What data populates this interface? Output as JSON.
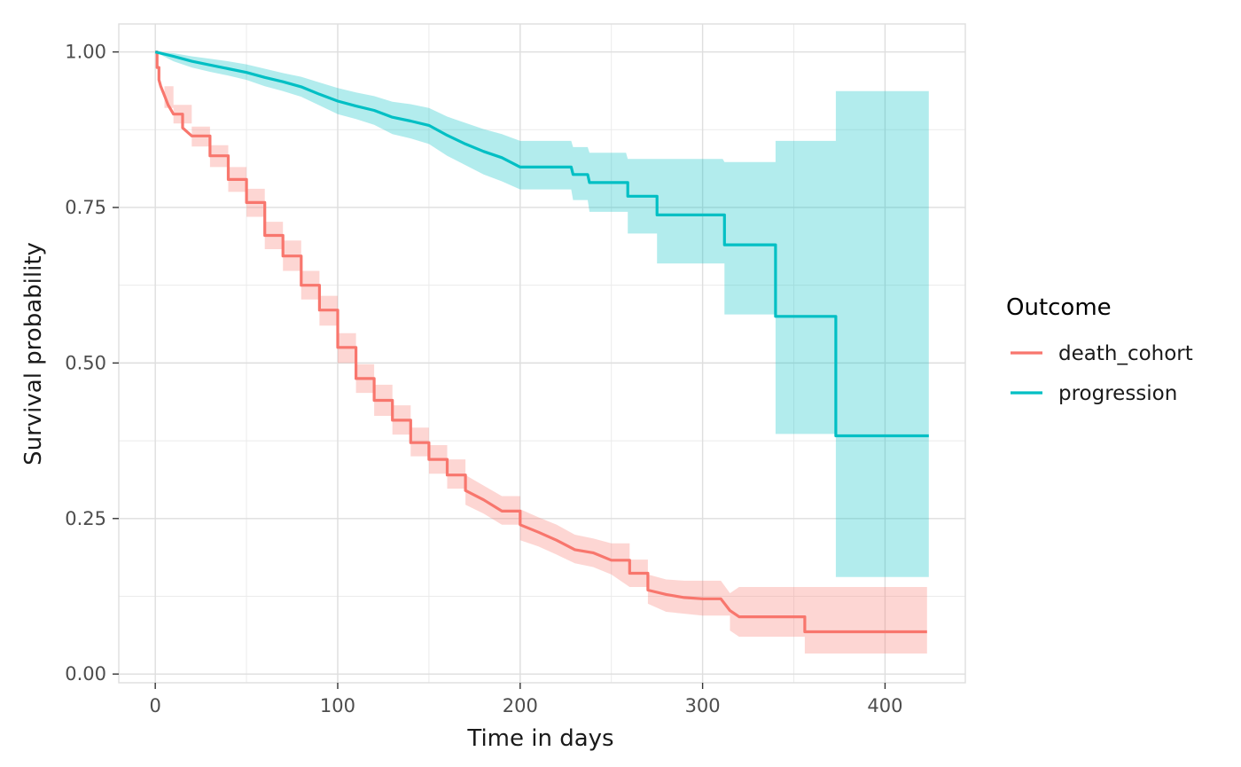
{
  "chart_data": {
    "type": "line",
    "subtype": "kaplan-meier step curves with confidence bands",
    "title": "",
    "xlabel": "Time in days",
    "ylabel": "Survival probability",
    "xlim": [
      -20,
      444
    ],
    "ylim": [
      -0.014,
      1.045
    ],
    "x_ticks": [
      0,
      100,
      200,
      300,
      400
    ],
    "x_tick_labels": [
      "0",
      "100",
      "200",
      "300",
      "400"
    ],
    "y_ticks": [
      0,
      0.25,
      0.5,
      0.75,
      1
    ],
    "y_tick_labels": [
      "0.00",
      "0.25",
      "0.50",
      "0.75",
      "1.00"
    ],
    "grid": true,
    "legend": {
      "title": "Outcome",
      "position": "right"
    },
    "series": [
      {
        "name": "death_cohort",
        "color": "#F8766D",
        "fill_color": "#FCC4C0",
        "points": [
          [
            0,
            1.0
          ],
          [
            1,
            0.975
          ],
          [
            2,
            0.955
          ],
          [
            3,
            0.945
          ],
          [
            5,
            0.93
          ],
          [
            7,
            0.915
          ],
          [
            10,
            0.9
          ],
          [
            15,
            0.878
          ],
          [
            20,
            0.865
          ],
          [
            30,
            0.833
          ],
          [
            40,
            0.795
          ],
          [
            50,
            0.758
          ],
          [
            60,
            0.705
          ],
          [
            70,
            0.672
          ],
          [
            80,
            0.625
          ],
          [
            90,
            0.585
          ],
          [
            100,
            0.525
          ],
          [
            110,
            0.475
          ],
          [
            120,
            0.44
          ],
          [
            130,
            0.408
          ],
          [
            140,
            0.372
          ],
          [
            150,
            0.345
          ],
          [
            160,
            0.32
          ],
          [
            170,
            0.295
          ],
          [
            180,
            0.28
          ],
          [
            190,
            0.262
          ],
          [
            200,
            0.24
          ],
          [
            210,
            0.228
          ],
          [
            220,
            0.215
          ],
          [
            230,
            0.2
          ],
          [
            240,
            0.195
          ],
          [
            250,
            0.183
          ],
          [
            260,
            0.162
          ],
          [
            270,
            0.135
          ],
          [
            280,
            0.128
          ],
          [
            290,
            0.123
          ],
          [
            300,
            0.121
          ],
          [
            310,
            0.121
          ],
          [
            315,
            0.102
          ],
          [
            320,
            0.092
          ],
          [
            330,
            0.092
          ],
          [
            355,
            0.092
          ],
          [
            356,
            0.068
          ],
          [
            423,
            0.068
          ]
        ],
        "lower": [
          [
            0,
            1.0
          ],
          [
            5,
            0.91
          ],
          [
            10,
            0.885
          ],
          [
            20,
            0.848
          ],
          [
            30,
            0.815
          ],
          [
            40,
            0.775
          ],
          [
            50,
            0.735
          ],
          [
            60,
            0.683
          ],
          [
            70,
            0.648
          ],
          [
            80,
            0.602
          ],
          [
            90,
            0.56
          ],
          [
            100,
            0.5
          ],
          [
            110,
            0.452
          ],
          [
            120,
            0.415
          ],
          [
            130,
            0.385
          ],
          [
            140,
            0.35
          ],
          [
            150,
            0.322
          ],
          [
            160,
            0.298
          ],
          [
            170,
            0.272
          ],
          [
            180,
            0.258
          ],
          [
            190,
            0.24
          ],
          [
            200,
            0.215
          ],
          [
            210,
            0.205
          ],
          [
            220,
            0.192
          ],
          [
            230,
            0.178
          ],
          [
            240,
            0.172
          ],
          [
            250,
            0.16
          ],
          [
            260,
            0.14
          ],
          [
            270,
            0.113
          ],
          [
            280,
            0.1
          ],
          [
            290,
            0.097
          ],
          [
            300,
            0.094
          ],
          [
            310,
            0.094
          ],
          [
            315,
            0.07
          ],
          [
            320,
            0.06
          ],
          [
            355,
            0.06
          ],
          [
            356,
            0.033
          ],
          [
            423,
            0.033
          ]
        ],
        "upper": [
          [
            0,
            1.0
          ],
          [
            5,
            0.945
          ],
          [
            10,
            0.915
          ],
          [
            20,
            0.88
          ],
          [
            30,
            0.85
          ],
          [
            40,
            0.815
          ],
          [
            50,
            0.78
          ],
          [
            60,
            0.727
          ],
          [
            70,
            0.697
          ],
          [
            80,
            0.648
          ],
          [
            90,
            0.608
          ],
          [
            100,
            0.548
          ],
          [
            110,
            0.498
          ],
          [
            120,
            0.465
          ],
          [
            130,
            0.432
          ],
          [
            140,
            0.396
          ],
          [
            150,
            0.368
          ],
          [
            160,
            0.345
          ],
          [
            170,
            0.32
          ],
          [
            180,
            0.303
          ],
          [
            190,
            0.286
          ],
          [
            200,
            0.265
          ],
          [
            210,
            0.252
          ],
          [
            220,
            0.24
          ],
          [
            230,
            0.224
          ],
          [
            240,
            0.218
          ],
          [
            250,
            0.21
          ],
          [
            260,
            0.184
          ],
          [
            270,
            0.16
          ],
          [
            280,
            0.152
          ],
          [
            290,
            0.15
          ],
          [
            300,
            0.15
          ],
          [
            310,
            0.15
          ],
          [
            315,
            0.13
          ],
          [
            320,
            0.14
          ],
          [
            355,
            0.14
          ],
          [
            356,
            0.14
          ],
          [
            423,
            0.14
          ]
        ]
      },
      {
        "name": "progression",
        "color": "#00BFC4",
        "fill_color": "#B0ECEE",
        "points": [
          [
            0,
            1.0
          ],
          [
            10,
            0.993
          ],
          [
            20,
            0.985
          ],
          [
            30,
            0.979
          ],
          [
            40,
            0.973
          ],
          [
            50,
            0.967
          ],
          [
            60,
            0.959
          ],
          [
            70,
            0.952
          ],
          [
            80,
            0.944
          ],
          [
            90,
            0.932
          ],
          [
            100,
            0.921
          ],
          [
            110,
            0.913
          ],
          [
            120,
            0.906
          ],
          [
            130,
            0.895
          ],
          [
            140,
            0.889
          ],
          [
            150,
            0.882
          ],
          [
            160,
            0.866
          ],
          [
            170,
            0.852
          ],
          [
            180,
            0.84
          ],
          [
            190,
            0.83
          ],
          [
            200,
            0.815
          ],
          [
            228,
            0.815
          ],
          [
            229,
            0.803
          ],
          [
            237,
            0.803
          ],
          [
            238,
            0.79
          ],
          [
            258,
            0.79
          ],
          [
            259,
            0.768
          ],
          [
            274,
            0.768
          ],
          [
            275,
            0.738
          ],
          [
            311,
            0.738
          ],
          [
            312,
            0.69
          ],
          [
            339,
            0.69
          ],
          [
            340,
            0.575
          ],
          [
            372,
            0.575
          ],
          [
            373,
            0.383
          ],
          [
            424,
            0.383
          ]
        ],
        "lower": [
          [
            0,
            1.0
          ],
          [
            10,
            0.985
          ],
          [
            20,
            0.975
          ],
          [
            30,
            0.968
          ],
          [
            40,
            0.962
          ],
          [
            50,
            0.955
          ],
          [
            60,
            0.945
          ],
          [
            70,
            0.937
          ],
          [
            80,
            0.928
          ],
          [
            90,
            0.914
          ],
          [
            100,
            0.9
          ],
          [
            110,
            0.892
          ],
          [
            120,
            0.883
          ],
          [
            130,
            0.868
          ],
          [
            140,
            0.861
          ],
          [
            150,
            0.852
          ],
          [
            160,
            0.833
          ],
          [
            170,
            0.818
          ],
          [
            180,
            0.803
          ],
          [
            190,
            0.792
          ],
          [
            200,
            0.779
          ],
          [
            228,
            0.779
          ],
          [
            229,
            0.762
          ],
          [
            237,
            0.762
          ],
          [
            238,
            0.743
          ],
          [
            258,
            0.743
          ],
          [
            259,
            0.708
          ],
          [
            274,
            0.708
          ],
          [
            275,
            0.66
          ],
          [
            311,
            0.66
          ],
          [
            312,
            0.578
          ],
          [
            339,
            0.578
          ],
          [
            340,
            0.386
          ],
          [
            372,
            0.386
          ],
          [
            373,
            0.156
          ],
          [
            424,
            0.156
          ]
        ],
        "upper": [
          [
            0,
            1.0
          ],
          [
            10,
            0.998
          ],
          [
            20,
            0.993
          ],
          [
            30,
            0.989
          ],
          [
            40,
            0.985
          ],
          [
            50,
            0.98
          ],
          [
            60,
            0.973
          ],
          [
            70,
            0.966
          ],
          [
            80,
            0.96
          ],
          [
            90,
            0.951
          ],
          [
            100,
            0.942
          ],
          [
            110,
            0.935
          ],
          [
            120,
            0.929
          ],
          [
            130,
            0.92
          ],
          [
            140,
            0.916
          ],
          [
            150,
            0.91
          ],
          [
            160,
            0.896
          ],
          [
            170,
            0.886
          ],
          [
            180,
            0.876
          ],
          [
            190,
            0.868
          ],
          [
            200,
            0.857
          ],
          [
            228,
            0.857
          ],
          [
            229,
            0.847
          ],
          [
            237,
            0.847
          ],
          [
            238,
            0.838
          ],
          [
            258,
            0.838
          ],
          [
            259,
            0.828
          ],
          [
            274,
            0.828
          ],
          [
            275,
            0.828
          ],
          [
            311,
            0.828
          ],
          [
            312,
            0.823
          ],
          [
            339,
            0.823
          ],
          [
            340,
            0.857
          ],
          [
            372,
            0.857
          ],
          [
            373,
            0.937
          ],
          [
            424,
            0.937
          ]
        ]
      }
    ]
  }
}
